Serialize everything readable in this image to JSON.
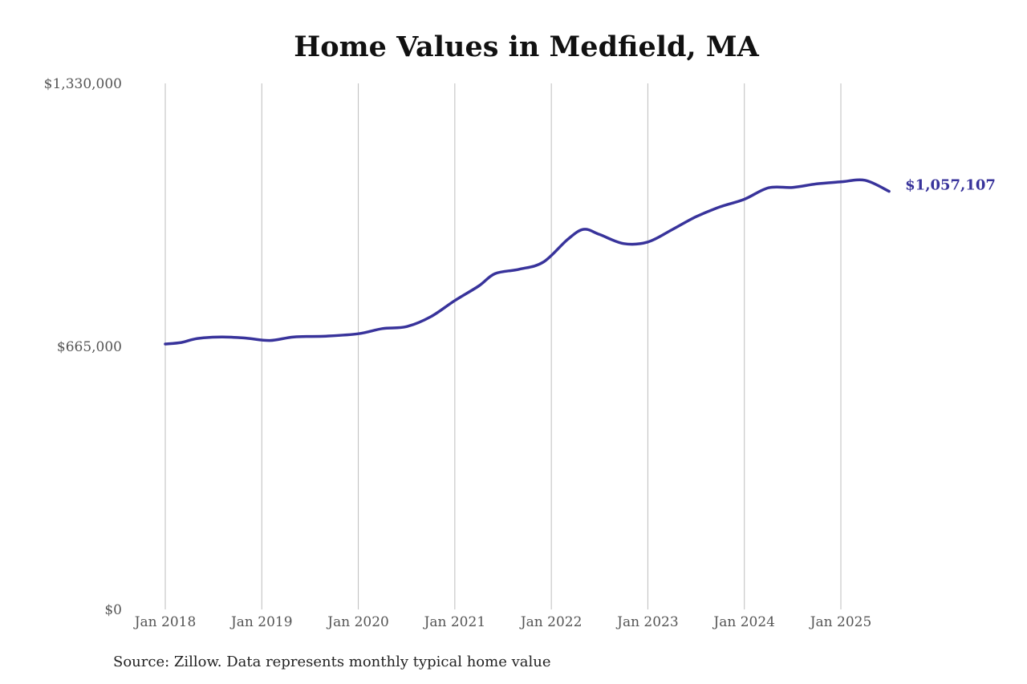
{
  "chart_data": {
    "type": "line",
    "title": "Home Values in Medfield, MA",
    "source": "Source: Zillow. Data represents monthly typical home value",
    "xlabel": "",
    "ylabel": "",
    "ylim": [
      0,
      1330000
    ],
    "y_ticks": [
      {
        "value": 0,
        "label": "$0"
      },
      {
        "value": 665000,
        "label": "$665,000"
      },
      {
        "value": 1330000,
        "label": "$1,330,000"
      }
    ],
    "x_ticks": [
      {
        "value": "2018-01",
        "label": "Jan 2018"
      },
      {
        "value": "2019-01",
        "label": "Jan 2019"
      },
      {
        "value": "2020-01",
        "label": "Jan 2020"
      },
      {
        "value": "2021-01",
        "label": "Jan 2021"
      },
      {
        "value": "2022-01",
        "label": "Jan 2022"
      },
      {
        "value": "2023-01",
        "label": "Jan 2023"
      },
      {
        "value": "2024-01",
        "label": "Jan 2024"
      },
      {
        "value": "2025-01",
        "label": "Jan 2025"
      }
    ],
    "grid": {
      "vertical": true,
      "horizontal": false
    },
    "series": [
      {
        "color": "#38339b",
        "end_label": "$1,057,107",
        "points": [
          {
            "x": "2018-01",
            "y": 671000
          },
          {
            "x": "2018-03",
            "y": 675000
          },
          {
            "x": "2018-05",
            "y": 685000
          },
          {
            "x": "2018-08",
            "y": 689000
          },
          {
            "x": "2018-11",
            "y": 686000
          },
          {
            "x": "2019-02",
            "y": 680000
          },
          {
            "x": "2019-05",
            "y": 689000
          },
          {
            "x": "2019-09",
            "y": 691000
          },
          {
            "x": "2020-01",
            "y": 697000
          },
          {
            "x": "2020-04",
            "y": 710000
          },
          {
            "x": "2020-07",
            "y": 715000
          },
          {
            "x": "2020-10",
            "y": 740000
          },
          {
            "x": "2021-01",
            "y": 781000
          },
          {
            "x": "2021-04",
            "y": 818000
          },
          {
            "x": "2021-06",
            "y": 849000
          },
          {
            "x": "2021-09",
            "y": 860000
          },
          {
            "x": "2021-12",
            "y": 878000
          },
          {
            "x": "2022-03",
            "y": 935000
          },
          {
            "x": "2022-05",
            "y": 961000
          },
          {
            "x": "2022-07",
            "y": 948000
          },
          {
            "x": "2022-10",
            "y": 925000
          },
          {
            "x": "2023-01",
            "y": 929000
          },
          {
            "x": "2023-04",
            "y": 960000
          },
          {
            "x": "2023-07",
            "y": 993000
          },
          {
            "x": "2023-10",
            "y": 1018000
          },
          {
            "x": "2024-01",
            "y": 1037000
          },
          {
            "x": "2024-04",
            "y": 1066000
          },
          {
            "x": "2024-07",
            "y": 1067000
          },
          {
            "x": "2024-10",
            "y": 1076000
          },
          {
            "x": "2025-01",
            "y": 1081000
          },
          {
            "x": "2025-04",
            "y": 1085000
          },
          {
            "x": "2025-07",
            "y": 1057107
          }
        ]
      }
    ]
  }
}
